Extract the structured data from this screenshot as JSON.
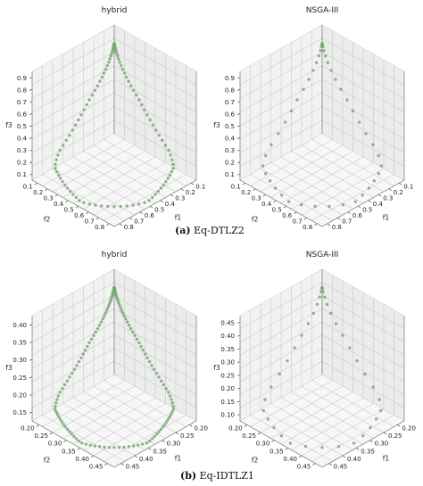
{
  "captions": [
    {
      "letter": "(a)",
      "text": " Eq-DTLZ2"
    },
    {
      "letter": "(b)",
      "text": " Eq-IDTLZ1"
    }
  ],
  "chart_data": [
    {
      "type": "scatter3d",
      "title": "hybrid",
      "xlabel": "f1",
      "ylabel": "f2",
      "zlabel": "f3",
      "xlim": [
        0.1,
        0.85
      ],
      "ylim": [
        0.1,
        0.85
      ],
      "zlim": [
        0.1,
        0.95
      ],
      "f1_ticks": [
        "0.1",
        "0.2",
        "0.3",
        "0.4",
        "0.5",
        "0.6",
        "0.7",
        "0.8"
      ],
      "f2_ticks": [
        "0.1",
        "0.2",
        "0.3",
        "0.4",
        "0.5",
        "0.6",
        "0.7",
        "0.8"
      ],
      "f3_ticks": [
        "0.9",
        "0.8",
        "0.7",
        "0.6",
        "0.5",
        "0.4",
        "0.3",
        "0.2",
        "0.1"
      ],
      "points": 100,
      "shape": "closed-curve",
      "marker_color": "#7aa874",
      "grid": true
    },
    {
      "type": "scatter3d",
      "title": "NSGA-III",
      "xlabel": "f1",
      "ylabel": "f2",
      "zlabel": "f3",
      "xlim": [
        0.1,
        0.85
      ],
      "ylim": [
        0.1,
        0.85
      ],
      "zlim": [
        0.1,
        0.95
      ],
      "f1_ticks": [
        "0.1",
        "0.2",
        "0.3",
        "0.4",
        "0.5",
        "0.6",
        "0.7",
        "0.8"
      ],
      "f2_ticks": [
        "0.1",
        "0.2",
        "0.3",
        "0.4",
        "0.5",
        "0.6",
        "0.7",
        "0.8"
      ],
      "f3_ticks": [
        "0.9",
        "0.8",
        "0.7",
        "0.6",
        "0.5",
        "0.4",
        "0.3",
        "0.2",
        "0.1"
      ],
      "points": 45,
      "shape": "closed-curve",
      "marker_color": "#7aa874",
      "grid": true
    },
    {
      "type": "scatter3d",
      "title": "hybrid",
      "xlabel": "f1",
      "ylabel": "f2",
      "zlabel": "f3",
      "xlim": [
        0.18,
        0.47
      ],
      "ylim": [
        0.18,
        0.47
      ],
      "zlim": [
        0.15,
        0.42
      ],
      "f1_ticks": [
        "0.20",
        "0.25",
        "0.30",
        "0.35",
        "0.40",
        "0.45"
      ],
      "f2_ticks": [
        "0.20",
        "0.25",
        "0.30",
        "0.35",
        "0.40",
        "0.45"
      ],
      "f3_ticks": [
        "0.40",
        "0.35",
        "0.30",
        "0.25",
        "0.20",
        "0.15"
      ],
      "points": 130,
      "shape": "closed-curve",
      "marker_color": "#7aa874",
      "grid": true
    },
    {
      "type": "scatter3d",
      "title": "NSGA-III",
      "xlabel": "f1",
      "ylabel": "f2",
      "zlabel": "f3",
      "xlim": [
        0.18,
        0.47
      ],
      "ylim": [
        0.18,
        0.47
      ],
      "zlim": [
        0.1,
        0.47
      ],
      "f1_ticks": [
        "0.20",
        "0.25",
        "0.30",
        "0.35",
        "0.40",
        "0.45"
      ],
      "f2_ticks": [
        "0.20",
        "0.25",
        "0.30",
        "0.35",
        "0.40",
        "0.45"
      ],
      "f3_ticks": [
        "0.45",
        "0.40",
        "0.35",
        "0.30",
        "0.25",
        "0.20",
        "0.15",
        "0.10"
      ],
      "points": 38,
      "shape": "closed-curve",
      "marker_color": "#7aa874",
      "grid": true
    }
  ]
}
